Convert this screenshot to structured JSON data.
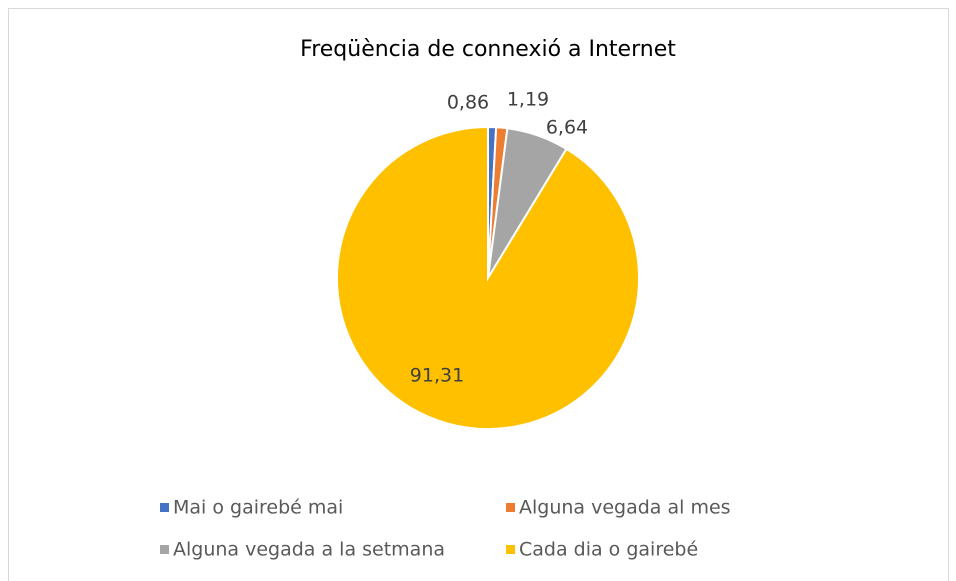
{
  "chart_data": {
    "type": "pie",
    "title": "Freqüència de connexió a Internet",
    "categories": [
      "Mai o gairebé mai",
      "Alguna vegada al mes",
      "Alguna vegada a la setmana",
      "Cada dia o gairebé"
    ],
    "values": [
      0.86,
      1.19,
      6.64,
      91.31
    ],
    "value_labels": [
      "0,86",
      "1,19",
      "6,64",
      "91,31"
    ],
    "colors": [
      "#4472c4",
      "#ed7d31",
      "#a5a5a5",
      "#ffc000"
    ],
    "legend": "bottom"
  }
}
